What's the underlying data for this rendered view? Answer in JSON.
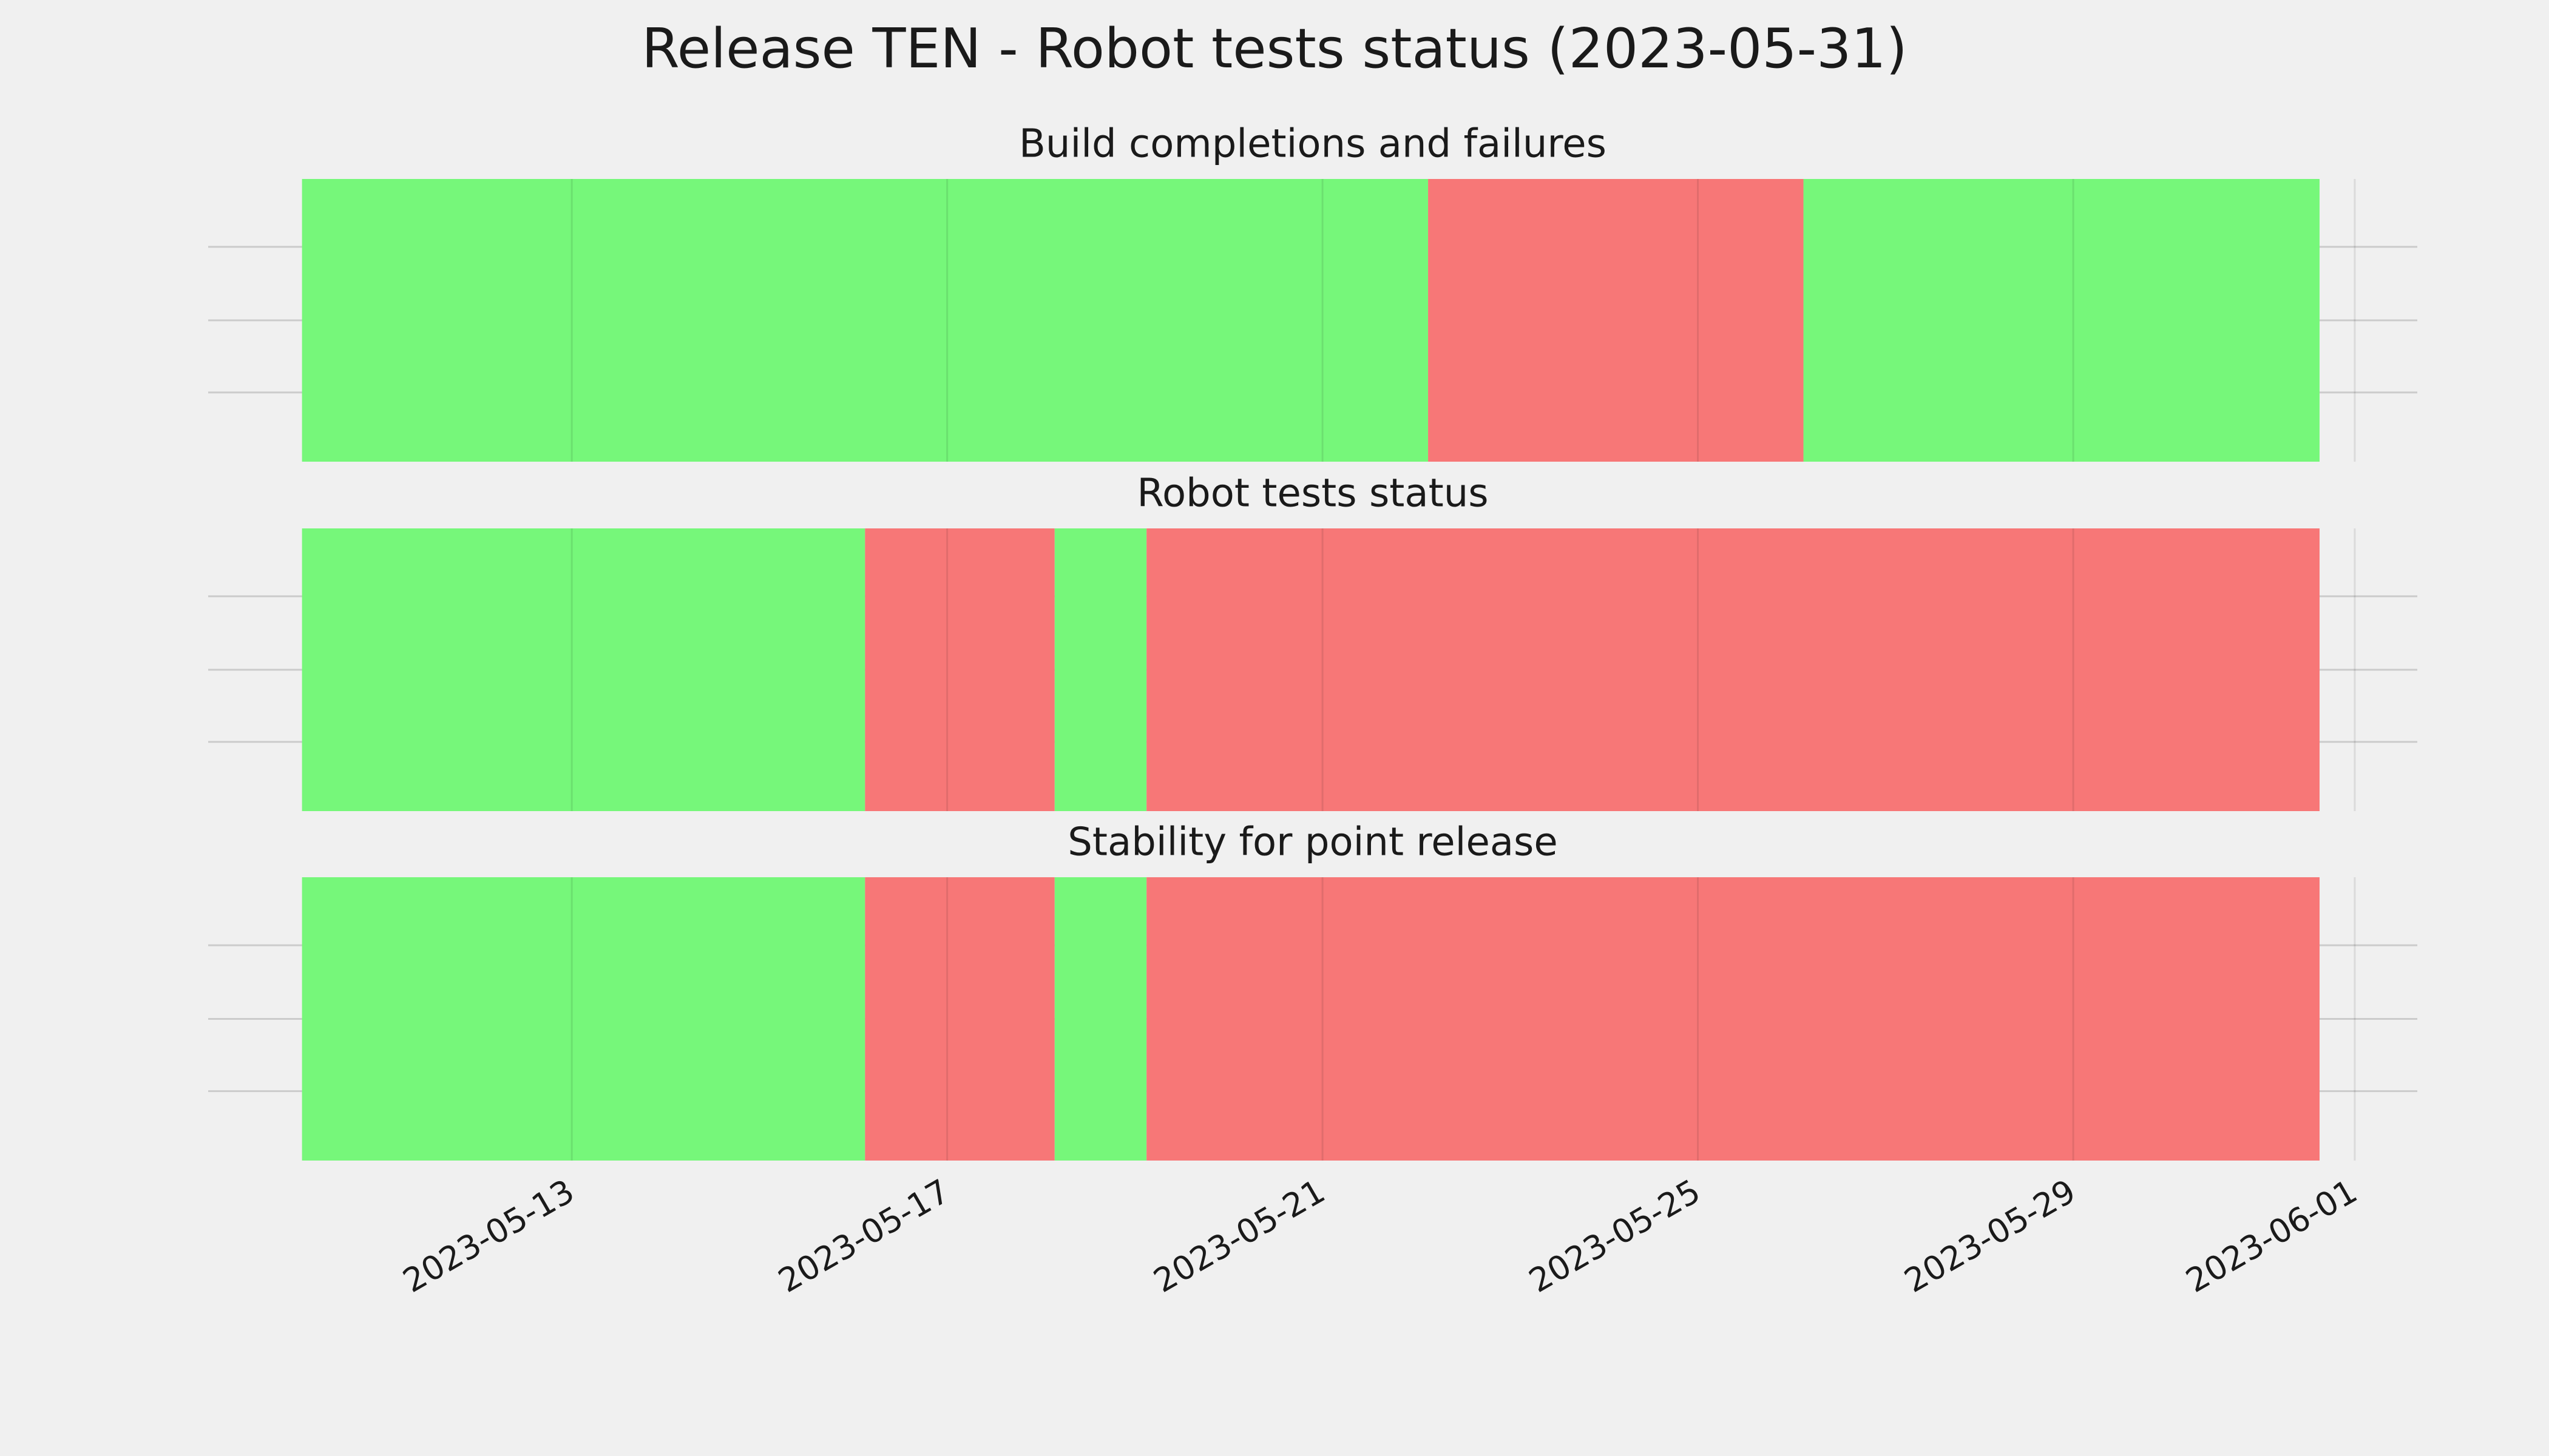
{
  "title": "Release TEN - Robot tests status (2023-05-31)",
  "chart_data": [
    {
      "type": "timeline",
      "title": "Build completions and failures",
      "xlim": [
        "2023-05-09T03:00",
        "2023-06-01T16:00"
      ],
      "xticks": [
        "2023-05-13",
        "2023-05-17",
        "2023-05-21",
        "2023-05-25",
        "2023-05-29",
        "2023-06-01"
      ],
      "grid": true,
      "segments": [
        {
          "start": "2023-05-10T03:00",
          "end": "2023-05-22T03:00",
          "color": "#76f77a"
        },
        {
          "start": "2023-05-22T03:00",
          "end": "2023-05-26T03:00",
          "color": "#f77777"
        },
        {
          "start": "2023-05-26T03:00",
          "end": "2023-05-31T15:00",
          "color": "#76f77a"
        }
      ]
    },
    {
      "type": "timeline",
      "title": "Robot tests status",
      "xlim": [
        "2023-05-09T03:00",
        "2023-06-01T16:00"
      ],
      "xticks": [
        "2023-05-13",
        "2023-05-17",
        "2023-05-21",
        "2023-05-25",
        "2023-05-29",
        "2023-06-01"
      ],
      "grid": true,
      "segments": [
        {
          "start": "2023-05-10T03:00",
          "end": "2023-05-16T03:00",
          "color": "#76f77a"
        },
        {
          "start": "2023-05-16T03:00",
          "end": "2023-05-18T03:30",
          "color": "#f77777"
        },
        {
          "start": "2023-05-18T03:30",
          "end": "2023-05-19T03:00",
          "color": "#76f77a"
        },
        {
          "start": "2023-05-19T03:00",
          "end": "2023-05-31T15:00",
          "color": "#f77777"
        }
      ]
    },
    {
      "type": "timeline",
      "title": "Stability for point release",
      "xlim": [
        "2023-05-09T03:00",
        "2023-06-01T16:00"
      ],
      "xticks": [
        "2023-05-13",
        "2023-05-17",
        "2023-05-21",
        "2023-05-25",
        "2023-05-29",
        "2023-06-01"
      ],
      "grid": true,
      "segments": [
        {
          "start": "2023-05-10T03:00",
          "end": "2023-05-16T03:00",
          "color": "#76f77a"
        },
        {
          "start": "2023-05-16T03:00",
          "end": "2023-05-18T03:30",
          "color": "#f77777"
        },
        {
          "start": "2023-05-18T03:30",
          "end": "2023-05-19T03:00",
          "color": "#76f77a"
        },
        {
          "start": "2023-05-19T03:00",
          "end": "2023-05-31T15:00",
          "color": "#f77777"
        }
      ]
    }
  ]
}
